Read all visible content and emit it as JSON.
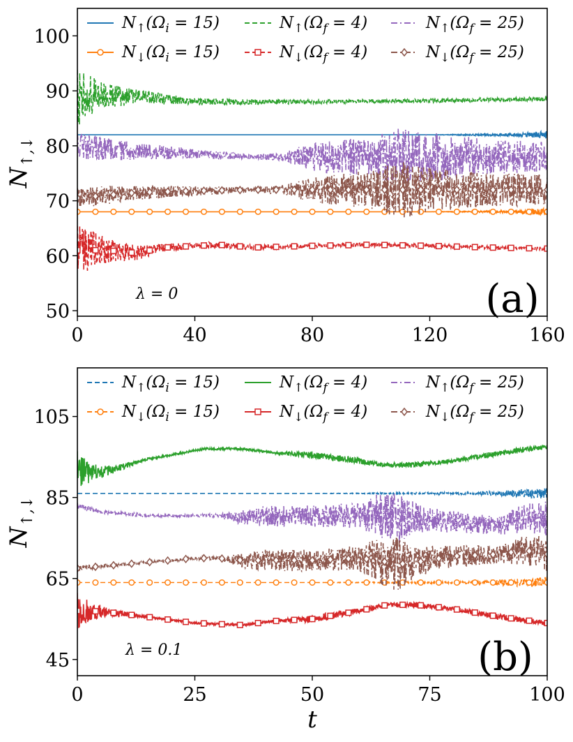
{
  "chart_data": [
    {
      "type": "line",
      "panel_label": "(a)",
      "annotation": "λ = 0",
      "xlabel": "",
      "ylabel": "N↑,↓",
      "xlim": [
        0,
        160
      ],
      "ylim": [
        49,
        105
      ],
      "xticks": [
        0,
        40,
        80,
        120,
        160
      ],
      "yticks": [
        50,
        60,
        70,
        80,
        90,
        100
      ],
      "grid": false,
      "legend_position": "top",
      "series": [
        {
          "name": "N↑(Ωi = 15)",
          "color": "#1f77b4",
          "style": "solid",
          "marker": "none",
          "base": 82,
          "x": [
            0,
            40,
            80,
            120,
            150,
            160
          ],
          "values": [
            82,
            82,
            82,
            82,
            82,
            82
          ],
          "osc": [
            0,
            0,
            0,
            0,
            0.3,
            0.8
          ]
        },
        {
          "name": "N↓(Ωi = 15)",
          "color": "#ff7f0e",
          "style": "solid",
          "marker": "circle",
          "base": 68,
          "x": [
            0,
            40,
            80,
            120,
            150,
            160
          ],
          "values": [
            68,
            68,
            68,
            68,
            68,
            68
          ],
          "osc": [
            0,
            0,
            0,
            0,
            0.3,
            0.8
          ]
        },
        {
          "name": "N↑(Ωf = 4)",
          "color": "#2ca02c",
          "style": "dashed",
          "marker": "none",
          "base": 88,
          "x": [
            0,
            5,
            10,
            20,
            40,
            80,
            120,
            160
          ],
          "values": [
            88.5,
            89,
            89,
            89,
            88,
            88,
            88.2,
            88.5
          ],
          "osc": [
            6,
            4,
            2.5,
            1.5,
            0.7,
            0.4,
            0.4,
            0.4
          ]
        },
        {
          "name": "N↓(Ωf = 4)",
          "color": "#d62728",
          "style": "dashed",
          "marker": "square",
          "base": 61,
          "x": [
            0,
            5,
            10,
            20,
            30,
            48,
            60,
            80,
            100,
            120,
            140,
            160
          ],
          "values": [
            61,
            61,
            61,
            60.5,
            61.5,
            62,
            61.5,
            61.8,
            62,
            61.8,
            61.5,
            61.3
          ],
          "osc": [
            5,
            4,
            2.5,
            1.5,
            0.8,
            0.6,
            0.5,
            0.4,
            0.4,
            0.4,
            0.4,
            0.3
          ]
        },
        {
          "name": "N↑(Ωf = 25)",
          "color": "#9467bd",
          "style": "dashdot",
          "marker": "none",
          "base": 78,
          "x": [
            0,
            10,
            20,
            40,
            60,
            70,
            80,
            100,
            110,
            120,
            140,
            160
          ],
          "values": [
            80,
            79.5,
            79,
            78.5,
            78,
            78,
            78,
            78,
            78,
            78,
            78,
            78
          ],
          "osc": [
            2.5,
            2.5,
            1.8,
            1,
            0.5,
            0.8,
            3,
            4,
            6,
            5,
            3.5,
            3
          ]
        },
        {
          "name": "N↓(Ωf = 25)",
          "color": "#8c564b",
          "style": "dashdot",
          "marker": "diamond",
          "base": 71,
          "x": [
            0,
            10,
            20,
            40,
            60,
            70,
            80,
            100,
            110,
            120,
            140,
            160
          ],
          "values": [
            70.5,
            71,
            71.5,
            71.8,
            72,
            72,
            72,
            72,
            72,
            72,
            72,
            72
          ],
          "osc": [
            2,
            2,
            1.5,
            1,
            0.5,
            1,
            2.5,
            4,
            6,
            4.5,
            3.5,
            3
          ]
        }
      ]
    },
    {
      "type": "line",
      "panel_label": "(b)",
      "annotation": "λ = 0.1",
      "xlabel": "t",
      "ylabel": "N↑,↓",
      "xlim": [
        0,
        100
      ],
      "ylim": [
        41,
        117
      ],
      "xticks": [
        0,
        25,
        50,
        75,
        100
      ],
      "yticks": [
        45,
        65,
        85,
        105
      ],
      "grid": false,
      "legend_position": "top",
      "series": [
        {
          "name": "N↑(Ωi = 15)",
          "color": "#1f77b4",
          "style": "dashed",
          "marker": "none",
          "x": [
            0,
            50,
            85,
            90,
            100
          ],
          "values": [
            86,
            86,
            86,
            86,
            86
          ],
          "osc": [
            0,
            0,
            0.4,
            0.8,
            1.5
          ]
        },
        {
          "name": "N↓(Ωi = 15)",
          "color": "#ff7f0e",
          "style": "dashed",
          "marker": "circle",
          "x": [
            0,
            50,
            85,
            90,
            100
          ],
          "values": [
            64,
            64,
            64,
            64,
            64
          ],
          "osc": [
            0,
            0,
            0.4,
            0.8,
            1.5
          ]
        },
        {
          "name": "N↑(Ωf = 4)",
          "color": "#2ca02c",
          "style": "solid",
          "marker": "none",
          "x": [
            0,
            3,
            8,
            15,
            27,
            35,
            42,
            50,
            60,
            65,
            72,
            80,
            90,
            100
          ],
          "values": [
            92,
            91,
            92,
            94.5,
            97,
            97,
            96,
            95.5,
            94,
            93,
            93,
            94,
            96,
            97.5
          ],
          "osc": [
            5,
            2.5,
            1,
            0.3,
            0.3,
            0.4,
            0.3,
            1,
            0.8,
            0.6,
            0.8,
            0.5,
            0.8,
            0.6
          ]
        },
        {
          "name": "N↓(Ωf = 4)",
          "color": "#d62728",
          "style": "solid",
          "marker": "square",
          "x": [
            0,
            3,
            8,
            15,
            25,
            35,
            42,
            50,
            60,
            66,
            72,
            80,
            90,
            100
          ],
          "values": [
            57,
            57,
            56.5,
            55.5,
            54,
            53.5,
            54.5,
            55,
            57,
            58.5,
            58.5,
            57.5,
            55.5,
            54
          ],
          "osc": [
            5,
            2.5,
            1,
            0.3,
            0.3,
            0.3,
            0.4,
            1,
            0.8,
            0.6,
            0.8,
            0.5,
            0.8,
            0.6
          ]
        },
        {
          "name": "N↑(Ωf = 25)",
          "color": "#9467bd",
          "style": "dashdot",
          "marker": "none",
          "x": [
            0,
            5,
            15,
            25,
            30,
            35,
            40,
            50,
            60,
            64,
            68,
            72,
            80,
            90,
            95,
            100
          ],
          "values": [
            83,
            81.5,
            80.5,
            80.5,
            80.5,
            80,
            80.5,
            80.5,
            80.5,
            81,
            80,
            80,
            79,
            78,
            80,
            80
          ],
          "osc": [
            0.8,
            0.5,
            0.4,
            0.4,
            0.5,
            2,
            3,
            3,
            3.5,
            6,
            8,
            4,
            3,
            2.5,
            4,
            5
          ]
        },
        {
          "name": "N↓(Ωf = 25)",
          "color": "#8c564b",
          "style": "dashdot",
          "marker": "diamond",
          "x": [
            0,
            5,
            15,
            25,
            30,
            35,
            40,
            50,
            60,
            64,
            68,
            72,
            80,
            90,
            95,
            100
          ],
          "values": [
            67.5,
            68,
            69,
            70,
            70,
            69.5,
            69.5,
            69.5,
            70,
            69.5,
            68.5,
            69,
            70.5,
            71,
            72,
            71
          ],
          "osc": [
            0.8,
            0.5,
            0.4,
            0.4,
            0.5,
            2,
            3,
            3,
            3.5,
            6,
            8,
            4,
            3,
            2.5,
            4,
            5
          ]
        }
      ]
    }
  ]
}
